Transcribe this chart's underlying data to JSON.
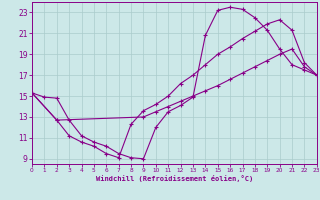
{
  "xlabel": "Windchill (Refroidissement éolien,°C)",
  "xlim": [
    0,
    23
  ],
  "ylim": [
    8.5,
    24.0
  ],
  "xticks": [
    0,
    1,
    2,
    3,
    4,
    5,
    6,
    7,
    8,
    9,
    10,
    11,
    12,
    13,
    14,
    15,
    16,
    17,
    18,
    19,
    20,
    21,
    22,
    23
  ],
  "yticks": [
    9,
    11,
    13,
    15,
    17,
    19,
    21,
    23
  ],
  "bg_color": "#cce8e8",
  "line_color": "#880088",
  "grid_color": "#aacccc",
  "lines": [
    {
      "x": [
        0,
        1,
        2,
        3,
        4,
        5,
        6,
        7,
        8,
        9,
        10,
        11,
        12,
        13,
        14,
        15,
        16,
        17,
        18,
        19,
        20,
        21,
        22,
        23
      ],
      "y": [
        15.3,
        14.9,
        14.8,
        12.7,
        11.2,
        10.6,
        10.2,
        9.5,
        9.1,
        9.0,
        12.0,
        13.5,
        14.1,
        14.9,
        20.8,
        23.2,
        23.5,
        23.3,
        22.5,
        21.3,
        19.5,
        18.0,
        17.5,
        17.0
      ]
    },
    {
      "x": [
        0,
        2,
        3,
        4,
        5,
        6,
        7,
        8,
        9,
        10,
        11,
        12,
        13,
        14,
        15,
        16,
        17,
        18,
        19,
        20,
        21,
        22,
        23
      ],
      "y": [
        15.3,
        12.7,
        11.2,
        10.6,
        10.2,
        9.5,
        9.1,
        12.3,
        13.6,
        14.2,
        15.0,
        16.2,
        17.0,
        18.0,
        19.0,
        19.7,
        20.5,
        21.2,
        21.9,
        22.3,
        21.3,
        18.2,
        17.0
      ]
    },
    {
      "x": [
        0,
        2,
        9,
        10,
        11,
        12,
        13,
        14,
        15,
        16,
        17,
        18,
        19,
        20,
        21,
        22,
        23
      ],
      "y": [
        15.3,
        12.7,
        13.0,
        13.5,
        14.0,
        14.5,
        15.0,
        15.5,
        16.0,
        16.6,
        17.2,
        17.8,
        18.4,
        19.0,
        19.5,
        17.8,
        17.0
      ]
    }
  ]
}
